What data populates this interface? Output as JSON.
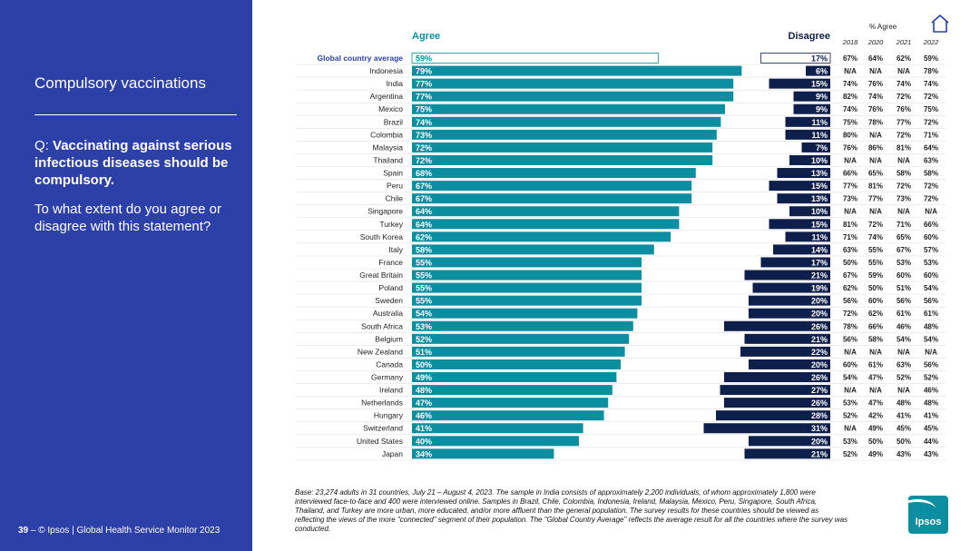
{
  "sidebar": {
    "title": "Compulsory vaccinations",
    "question_prefix": "Q: ",
    "question": "Vaccinating against serious infectious diseases should be compulsory.",
    "subquestion": "To what extent do you agree or disagree with this statement?"
  },
  "footer": {
    "page": "39",
    "text": " – © Ipsos | Global Health Service Monitor 2023"
  },
  "header": {
    "pct_agree": "% Agree"
  },
  "base_note": "Base: 23,274 adults in 31 countries, July 21 – August 4, 2023. The sample in India consists of approximately 2,200 individuals, of whom approximately 1,800 were interviewed face-to-face and 400 were interviewed online. Samples in Brazil, Chile, Colombia, Indonesia, Ireland, Malaysia, Mexico, Peru, Singapore, South Africa, Thailand, and Turkey are more urban, more educated, and/or more affluent than the general population. The survey results for these countries should be viewed as reflecting the views of the more \"connected\" segment of their population. The \"Global Country Average\" reflects the average result for all the countries where the survey was conducted.",
  "logo": {
    "text": "Ipsos"
  },
  "colors": {
    "sidebar": "#2d40a8",
    "agree": "#0b8ea0",
    "disagree": "#0f1f4b",
    "agree_label": "#0b8ea0",
    "disagree_label": "#0f1f4b"
  },
  "chart_data": {
    "type": "bar",
    "agree_label": "Agree",
    "disagree_label": "Disagree",
    "trend_years": [
      "2018",
      "2020",
      "2021",
      "2022"
    ],
    "rows": [
      {
        "country": "Global country average",
        "agree": 59,
        "disagree": 17,
        "trend": [
          "67%",
          "64%",
          "62%",
          "59%"
        ],
        "highlight": true
      },
      {
        "country": "Indonesia",
        "agree": 79,
        "disagree": 6,
        "trend": [
          "N/A",
          "N/A",
          "N/A",
          "78%"
        ]
      },
      {
        "country": "India",
        "agree": 77,
        "disagree": 15,
        "trend": [
          "74%",
          "76%",
          "74%",
          "74%"
        ]
      },
      {
        "country": "Argentina",
        "agree": 77,
        "disagree": 9,
        "trend": [
          "82%",
          "74%",
          "72%",
          "72%"
        ]
      },
      {
        "country": "Mexico",
        "agree": 75,
        "disagree": 9,
        "trend": [
          "74%",
          "76%",
          "76%",
          "75%"
        ]
      },
      {
        "country": "Brazil",
        "agree": 74,
        "disagree": 11,
        "trend": [
          "75%",
          "78%",
          "77%",
          "72%"
        ]
      },
      {
        "country": "Colombia",
        "agree": 73,
        "disagree": 11,
        "trend": [
          "80%",
          "N/A",
          "72%",
          "71%"
        ]
      },
      {
        "country": "Malaysia",
        "agree": 72,
        "disagree": 7,
        "trend": [
          "76%",
          "86%",
          "81%",
          "64%"
        ]
      },
      {
        "country": "Thailand",
        "agree": 72,
        "disagree": 10,
        "trend": [
          "N/A",
          "N/A",
          "N/A",
          "63%"
        ]
      },
      {
        "country": "Spain",
        "agree": 68,
        "disagree": 13,
        "trend": [
          "66%",
          "65%",
          "58%",
          "58%"
        ]
      },
      {
        "country": "Peru",
        "agree": 67,
        "disagree": 15,
        "trend": [
          "77%",
          "81%",
          "72%",
          "72%"
        ]
      },
      {
        "country": "Chile",
        "agree": 67,
        "disagree": 13,
        "trend": [
          "73%",
          "77%",
          "73%",
          "72%"
        ]
      },
      {
        "country": "Singapore",
        "agree": 64,
        "disagree": 10,
        "trend": [
          "N/A",
          "N/A",
          "N/A",
          "N/A"
        ]
      },
      {
        "country": "Turkey",
        "agree": 64,
        "disagree": 15,
        "trend": [
          "81%",
          "72%",
          "71%",
          "66%"
        ]
      },
      {
        "country": "South Korea",
        "agree": 62,
        "disagree": 11,
        "trend": [
          "71%",
          "74%",
          "65%",
          "60%"
        ]
      },
      {
        "country": "Italy",
        "agree": 58,
        "disagree": 14,
        "trend": [
          "63%",
          "55%",
          "67%",
          "57%"
        ]
      },
      {
        "country": "France",
        "agree": 55,
        "disagree": 17,
        "trend": [
          "50%",
          "55%",
          "53%",
          "53%"
        ]
      },
      {
        "country": "Great Britain",
        "agree": 55,
        "disagree": 21,
        "trend": [
          "67%",
          "59%",
          "60%",
          "60%"
        ]
      },
      {
        "country": "Poland",
        "agree": 55,
        "disagree": 19,
        "trend": [
          "62%",
          "50%",
          "51%",
          "54%"
        ]
      },
      {
        "country": "Sweden",
        "agree": 55,
        "disagree": 20,
        "trend": [
          "56%",
          "60%",
          "56%",
          "56%"
        ]
      },
      {
        "country": "Australia",
        "agree": 54,
        "disagree": 20,
        "trend": [
          "72%",
          "62%",
          "61%",
          "61%"
        ]
      },
      {
        "country": "South Africa",
        "agree": 53,
        "disagree": 26,
        "trend": [
          "78%",
          "66%",
          "46%",
          "48%"
        ]
      },
      {
        "country": "Belgium",
        "agree": 52,
        "disagree": 21,
        "trend": [
          "56%",
          "58%",
          "54%",
          "54%"
        ]
      },
      {
        "country": "New Zealand",
        "agree": 51,
        "disagree": 22,
        "trend": [
          "N/A",
          "N/A",
          "N/A",
          "N/A"
        ]
      },
      {
        "country": "Canada",
        "agree": 50,
        "disagree": 20,
        "trend": [
          "60%",
          "61%",
          "63%",
          "56%"
        ]
      },
      {
        "country": "Germany",
        "agree": 49,
        "disagree": 26,
        "trend": [
          "54%",
          "47%",
          "52%",
          "52%"
        ]
      },
      {
        "country": "Ireland",
        "agree": 48,
        "disagree": 27,
        "trend": [
          "N/A",
          "N/A",
          "N/A",
          "46%"
        ]
      },
      {
        "country": "Netherlands",
        "agree": 47,
        "disagree": 26,
        "trend": [
          "53%",
          "47%",
          "48%",
          "48%"
        ]
      },
      {
        "country": "Hungary",
        "agree": 46,
        "disagree": 28,
        "trend": [
          "52%",
          "42%",
          "41%",
          "41%"
        ]
      },
      {
        "country": "Switzerland",
        "agree": 41,
        "disagree": 31,
        "trend": [
          "N/A",
          "49%",
          "45%",
          "45%"
        ]
      },
      {
        "country": "United States",
        "agree": 40,
        "disagree": 20,
        "trend": [
          "53%",
          "50%",
          "50%",
          "44%"
        ]
      },
      {
        "country": "Japan",
        "agree": 34,
        "disagree": 21,
        "trend": [
          "52%",
          "49%",
          "43%",
          "43%"
        ]
      }
    ]
  }
}
